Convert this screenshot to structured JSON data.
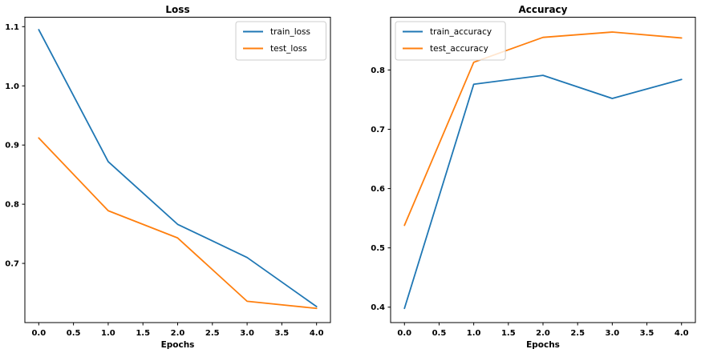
{
  "figure": {
    "background": "#ffffff",
    "text_color": "#000000",
    "spine_color": "#000000",
    "legend_border_color": "#cccccc",
    "legend_fill": "rgba(255,255,255,0.8)"
  },
  "chart_data": [
    {
      "type": "line",
      "title": "Loss",
      "xlabel": "Epochs",
      "ylabel": "",
      "x": [
        0,
        1,
        2,
        3,
        4
      ],
      "series": [
        {
          "name": "train_loss",
          "color": "#1f77b4",
          "values": [
            1.095,
            0.872,
            0.766,
            0.71,
            0.627
          ]
        },
        {
          "name": "test_loss",
          "color": "#ff7f0e",
          "values": [
            0.912,
            0.789,
            0.743,
            0.636,
            0.624
          ]
        }
      ],
      "xlim": [
        -0.2,
        4.2
      ],
      "ylim": [
        0.6,
        1.116
      ],
      "xticks": [
        0.0,
        0.5,
        1.0,
        1.5,
        2.0,
        2.5,
        3.0,
        3.5,
        4.0
      ],
      "yticks": [
        0.7,
        0.8,
        0.9,
        1.0,
        1.1
      ],
      "grid": false,
      "legend_position": "top-right"
    },
    {
      "type": "line",
      "title": "Accuracy",
      "xlabel": "Epochs",
      "ylabel": "",
      "x": [
        0,
        1,
        2,
        3,
        4
      ],
      "series": [
        {
          "name": "train_accuracy",
          "color": "#1f77b4",
          "values": [
            0.398,
            0.776,
            0.791,
            0.752,
            0.784
          ]
        },
        {
          "name": "test_accuracy",
          "color": "#ff7f0e",
          "values": [
            0.538,
            0.813,
            0.855,
            0.864,
            0.854
          ]
        }
      ],
      "xlim": [
        -0.2,
        4.2
      ],
      "ylim": [
        0.374,
        0.889
      ],
      "xticks": [
        0.0,
        0.5,
        1.0,
        1.5,
        2.0,
        2.5,
        3.0,
        3.5,
        4.0
      ],
      "yticks": [
        0.4,
        0.5,
        0.6,
        0.7,
        0.8
      ],
      "grid": false,
      "legend_position": "top-left"
    }
  ]
}
